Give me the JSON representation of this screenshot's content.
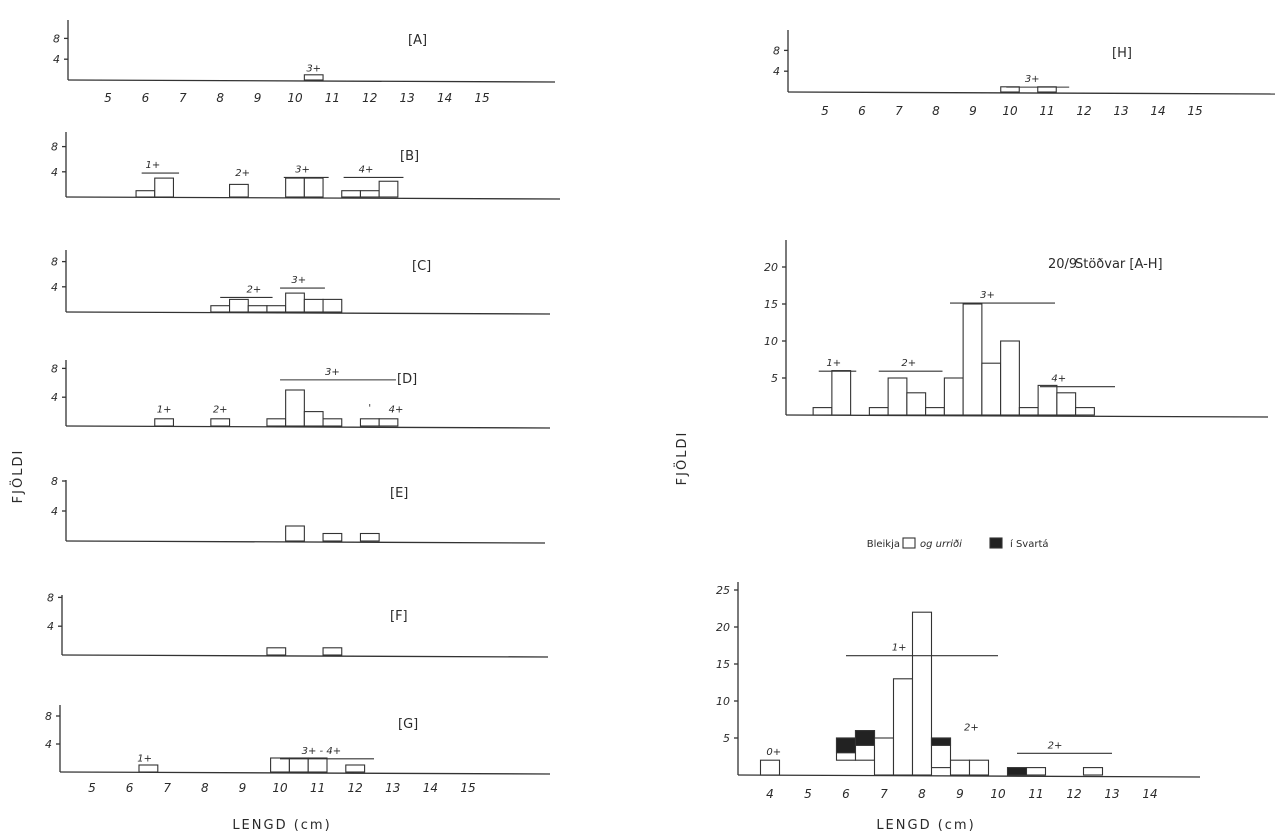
{
  "labels": {
    "fjoldi": "FJÖLDI",
    "lengd": "LENGD (cm)",
    "summary_date": "20/9",
    "summary_title": "Stöðvar [A-H]",
    "legend_prefix": "Bleikja",
    "legend_mid": "og urriði",
    "legend_suffix": "í Svartá"
  },
  "chart_data": [
    {
      "id": "A",
      "type": "bar",
      "title": "[A]",
      "yticks": [
        4,
        8
      ],
      "xticks": [
        5,
        6,
        7,
        8,
        9,
        10,
        11,
        12,
        13,
        14,
        15
      ],
      "bars": [
        {
          "x": 10.5,
          "value": 1
        }
      ],
      "annotations": [
        {
          "text": "3+",
          "x": 10.5,
          "y": 1.6,
          "range": null
        }
      ]
    },
    {
      "id": "B",
      "type": "bar",
      "title": "[B]",
      "yticks": [
        4,
        8
      ],
      "xticks": [],
      "bars": [
        {
          "x": 6,
          "value": 1
        },
        {
          "x": 6.5,
          "value": 3
        },
        {
          "x": 8.5,
          "value": 2
        },
        {
          "x": 10,
          "value": 3
        },
        {
          "x": 10.5,
          "value": 3
        },
        {
          "x": 11.5,
          "value": 1
        },
        {
          "x": 12,
          "value": 1
        },
        {
          "x": 12.5,
          "value": 2.5
        }
      ],
      "annotations": [
        {
          "text": "1+",
          "x": 6.2,
          "y": 4.6,
          "range": [
            5.9,
            6.9
          ]
        },
        {
          "text": "2+",
          "x": 8.6,
          "y": 3.3,
          "range": null
        },
        {
          "text": "3+",
          "x": 10.2,
          "y": 3.9,
          "range": [
            9.7,
            10.9
          ]
        },
        {
          "text": "4+",
          "x": 11.9,
          "y": 3.9,
          "range": [
            11.3,
            12.9
          ]
        }
      ]
    },
    {
      "id": "C",
      "type": "bar",
      "title": "[C]",
      "yticks": [
        4,
        8
      ],
      "xticks": [],
      "bars": [
        {
          "x": 8,
          "value": 1
        },
        {
          "x": 8.5,
          "value": 2
        },
        {
          "x": 9,
          "value": 1
        },
        {
          "x": 9.5,
          "value": 1
        },
        {
          "x": 10,
          "value": 3
        },
        {
          "x": 10.5,
          "value": 2
        },
        {
          "x": 11,
          "value": 2
        }
      ],
      "annotations": [
        {
          "text": "2+",
          "x": 8.9,
          "y": 3.1,
          "range": [
            8,
            9.4
          ]
        },
        {
          "text": "3+",
          "x": 10.1,
          "y": 4.6,
          "range": [
            9.6,
            10.8
          ]
        }
      ]
    },
    {
      "id": "D",
      "type": "bar",
      "title": "[D]",
      "yticks": [
        4,
        8
      ],
      "xticks": [],
      "bars": [
        {
          "x": 6.5,
          "value": 1
        },
        {
          "x": 8,
          "value": 1
        },
        {
          "x": 9.5,
          "value": 1
        },
        {
          "x": 10,
          "value": 5
        },
        {
          "x": 10.5,
          "value": 2
        },
        {
          "x": 11,
          "value": 1
        },
        {
          "x": 12,
          "value": 1
        },
        {
          "x": 12.5,
          "value": 1
        }
      ],
      "annotations": [
        {
          "text": "1+",
          "x": 6.5,
          "y": 1.9,
          "range": null
        },
        {
          "text": "2+",
          "x": 8,
          "y": 1.9,
          "range": null
        },
        {
          "text": "3+",
          "x": 11,
          "y": 7.1,
          "range": [
            9.6,
            12.7
          ]
        },
        {
          "text": "'",
          "x": 12,
          "y": 2.1,
          "range": null
        },
        {
          "text": "4+",
          "x": 12.7,
          "y": 1.9,
          "range": null
        }
      ]
    },
    {
      "id": "E",
      "type": "bar",
      "title": "[E]",
      "yticks": [
        4,
        8
      ],
      "xticks": [],
      "bars": [
        {
          "x": 10,
          "value": 2
        },
        {
          "x": 11,
          "value": 1
        },
        {
          "x": 12,
          "value": 1
        }
      ],
      "annotations": []
    },
    {
      "id": "F",
      "type": "bar",
      "title": "[F]",
      "yticks": [
        4,
        8
      ],
      "xticks": [],
      "bars": [
        {
          "x": 9.5,
          "value": 1
        },
        {
          "x": 11,
          "value": 1
        }
      ],
      "annotations": []
    },
    {
      "id": "G",
      "type": "bar",
      "title": "[G]",
      "yticks": [
        4,
        8
      ],
      "xticks": [
        5,
        6,
        7,
        8,
        9,
        10,
        11,
        12,
        13,
        14,
        15
      ],
      "bars": [
        {
          "x": 6.5,
          "value": 1
        },
        {
          "x": 10,
          "value": 2
        },
        {
          "x": 10.5,
          "value": 2
        },
        {
          "x": 11,
          "value": 2
        },
        {
          "x": 12,
          "value": 1
        }
      ],
      "annotations": [
        {
          "text": "1+",
          "x": 6.4,
          "y": 1.5,
          "range": null
        },
        {
          "text": "3+ - 4+",
          "x": 11.1,
          "y": 2.6,
          "range": [
            10,
            12.5
          ]
        }
      ]
    },
    {
      "id": "H",
      "type": "bar",
      "title": "[H]",
      "yticks": [
        4,
        8
      ],
      "xticks": [
        5,
        6,
        7,
        8,
        9,
        10,
        11,
        12,
        13,
        14,
        15
      ],
      "bars": [
        {
          "x": 10,
          "value": 1
        },
        {
          "x": 11,
          "value": 1
        }
      ],
      "annotations": [
        {
          "text": "3+",
          "x": 10.6,
          "y": 1.9,
          "range": [
            9.9,
            11.6
          ]
        }
      ]
    },
    {
      "id": "SUM",
      "type": "bar",
      "title": "",
      "yticks": [
        5,
        10,
        15,
        20
      ],
      "xticks": [],
      "bars": [
        {
          "x": 6,
          "value": 1
        },
        {
          "x": 6.5,
          "value": 6
        },
        {
          "x": 7.5,
          "value": 1
        },
        {
          "x": 8,
          "value": 5
        },
        {
          "x": 8.5,
          "value": 3
        },
        {
          "x": 9,
          "value": 1
        },
        {
          "x": 9.5,
          "value": 5
        },
        {
          "x": 10,
          "value": 15
        },
        {
          "x": 10.5,
          "value": 7
        },
        {
          "x": 11,
          "value": 10
        },
        {
          "x": 11.5,
          "value": 1
        },
        {
          "x": 12,
          "value": 4
        },
        {
          "x": 12.5,
          "value": 3
        },
        {
          "x": 13,
          "value": 1
        }
      ],
      "annotations": [
        {
          "text": "1+",
          "x": 6.3,
          "y": 6.6,
          "range": [
            5.9,
            6.9
          ]
        },
        {
          "text": "2+",
          "x": 8.3,
          "y": 6.6,
          "range": [
            7.5,
            9.2
          ]
        },
        {
          "text": "3+",
          "x": 10.4,
          "y": 15.8,
          "range": [
            9.4,
            12.2
          ]
        },
        {
          "text": "4+",
          "x": 12.3,
          "y": 4.5,
          "range": [
            11.8,
            13.8
          ]
        }
      ]
    },
    {
      "id": "SVARTA",
      "type": "bar",
      "title": "",
      "yticks": [
        5,
        10,
        15,
        20,
        25
      ],
      "xticks": [
        4,
        5,
        6,
        7,
        8,
        9,
        10,
        11,
        12,
        13,
        14
      ],
      "series": [
        {
          "name": "Bleikja",
          "color": "#ffffff"
        },
        {
          "name": "urriði",
          "color": "#222222"
        }
      ],
      "bars": [
        {
          "x": 4,
          "value": 2
        },
        {
          "x": 6,
          "value": 3,
          "dark": 2
        },
        {
          "x": 6.5,
          "value": 4,
          "dark": 2
        },
        {
          "x": 7,
          "value": 5
        },
        {
          "x": 7.5,
          "value": 13
        },
        {
          "x": 8,
          "value": 22
        },
        {
          "x": 8.5,
          "value": 4,
          "dark": 1
        },
        {
          "x": 9,
          "value": 2
        },
        {
          "x": 9.5,
          "value": 2
        },
        {
          "x": 10.5,
          "value": 0,
          "dark": 1
        },
        {
          "x": 11,
          "value": 1
        },
        {
          "x": 12.5,
          "value": 1
        }
      ],
      "annotations": [
        {
          "text": "0+",
          "x": 4.1,
          "y": 2.7,
          "range": null
        },
        {
          "text": "1+",
          "x": 7.4,
          "y": 16.8,
          "range": [
            6,
            10
          ]
        },
        {
          "text": "2+",
          "x": 11.5,
          "y": 3.6,
          "range": [
            10.5,
            13
          ]
        },
        {
          "text": "2+",
          "x": 9.3,
          "y": 6,
          "range": null
        }
      ]
    }
  ]
}
